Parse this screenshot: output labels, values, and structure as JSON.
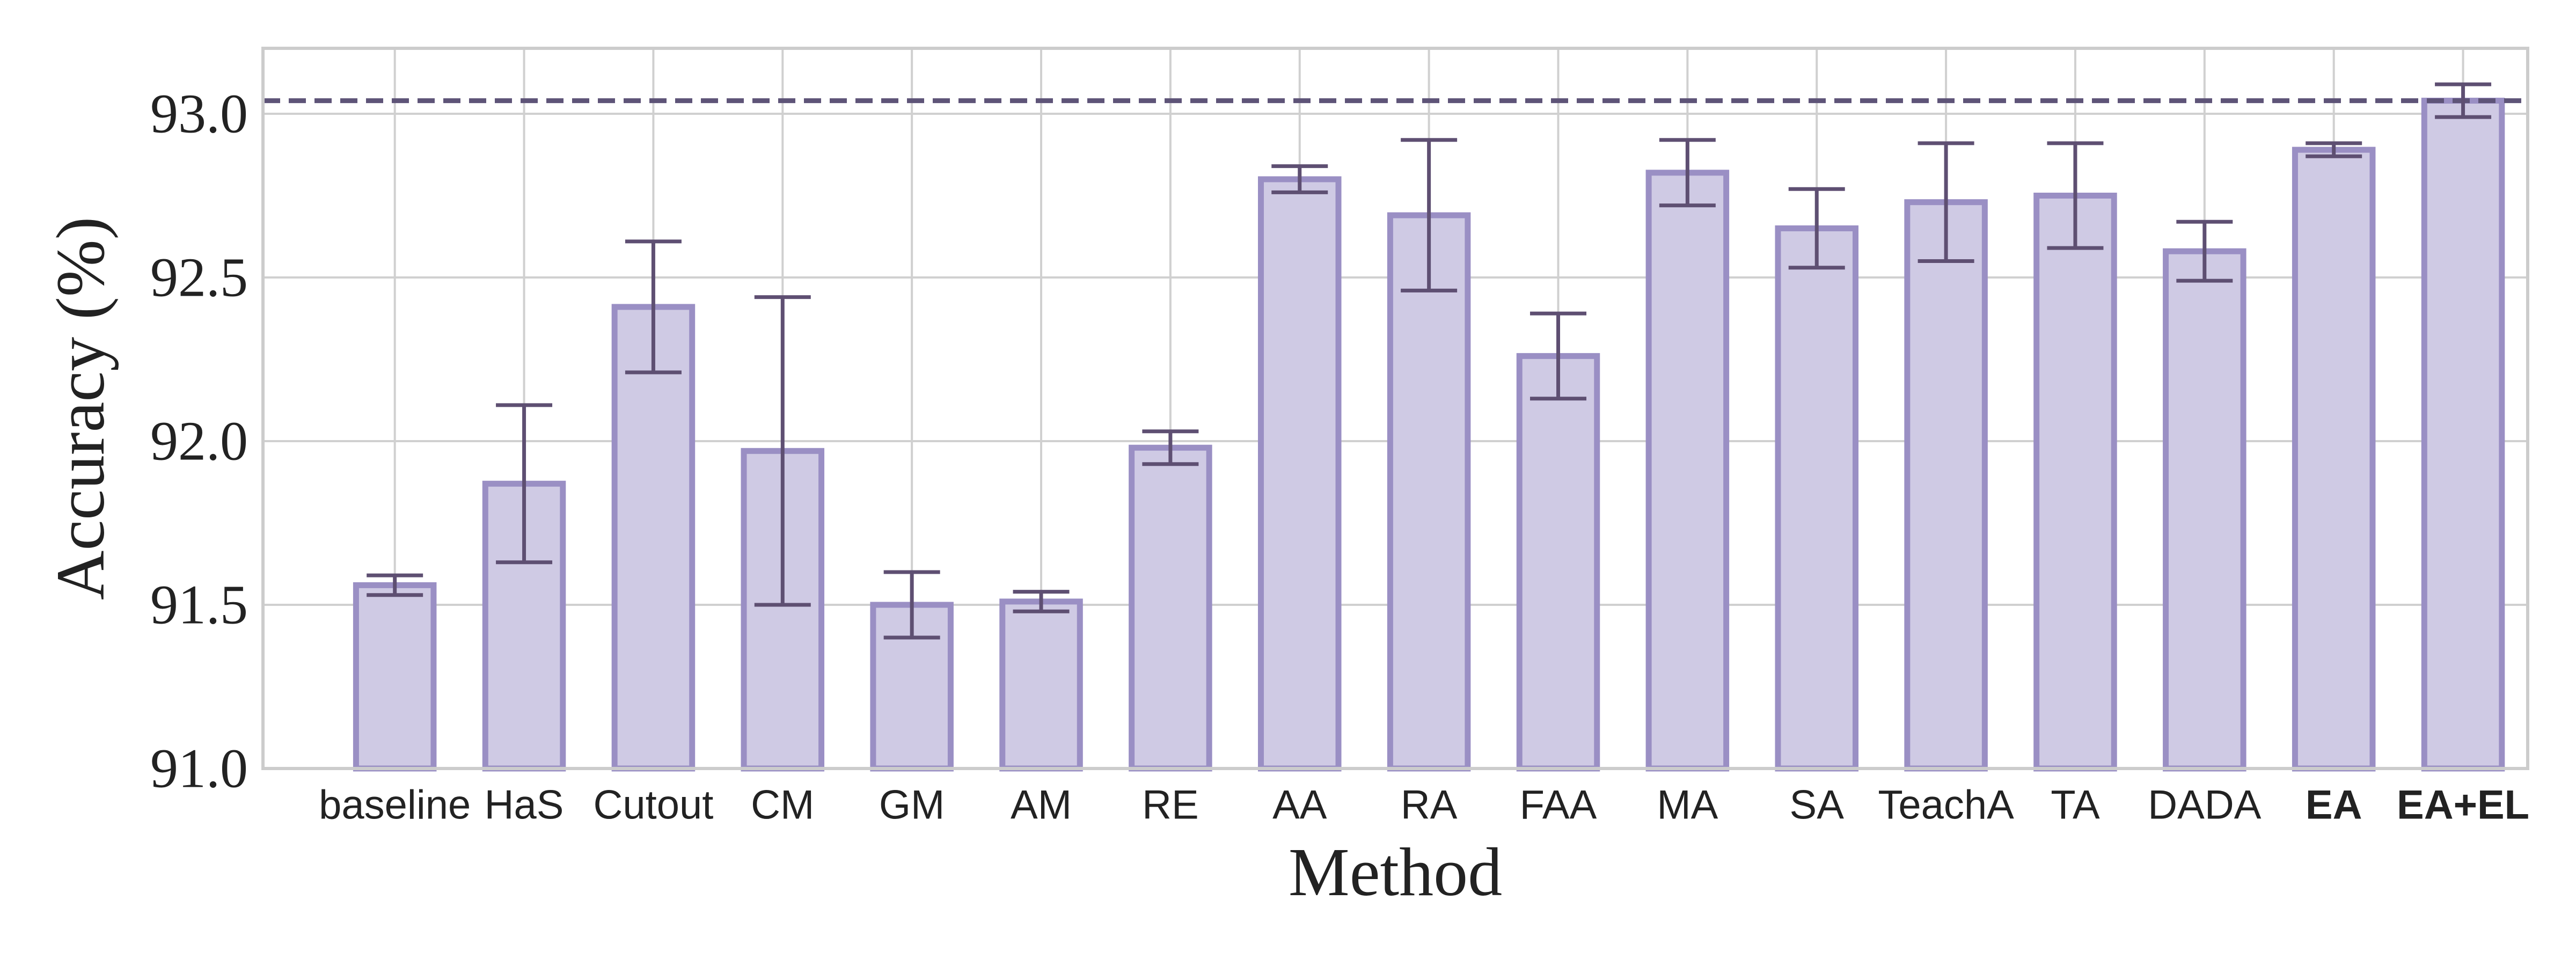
{
  "chart_data": {
    "type": "bar",
    "title": "",
    "xlabel": "Method",
    "ylabel": "Accuracy (%)",
    "categories": [
      "baseline",
      "HaS",
      "Cutout",
      "CM",
      "GM",
      "AM",
      "RE",
      "AA",
      "RA",
      "FAA",
      "MA",
      "SA",
      "TeachA",
      "TA",
      "DADA",
      "EA",
      "EA+EL"
    ],
    "bold_categories": [
      "EA",
      "EA+EL"
    ],
    "values": [
      91.56,
      91.87,
      92.41,
      91.97,
      91.5,
      91.51,
      91.98,
      92.8,
      92.69,
      92.26,
      92.82,
      92.65,
      92.73,
      92.75,
      92.58,
      92.89,
      93.04
    ],
    "error_lower": [
      91.53,
      91.63,
      92.21,
      91.5,
      91.4,
      91.48,
      91.93,
      92.76,
      92.46,
      92.13,
      92.72,
      92.53,
      92.55,
      92.59,
      92.49,
      92.87,
      92.99
    ],
    "error_upper": [
      91.59,
      92.11,
      92.61,
      92.44,
      91.6,
      91.54,
      92.03,
      92.84,
      92.92,
      92.39,
      92.92,
      92.77,
      92.91,
      92.91,
      92.67,
      92.91,
      93.09
    ],
    "reference_line": 93.04,
    "ylim": [
      91.0,
      93.2
    ],
    "yticks": [
      "91.0",
      "91.5",
      "92.0",
      "92.5",
      "93.0"
    ],
    "grid": true,
    "colors": {
      "bar_fill": "#cfcae4",
      "bar_edge": "#9a8fc4",
      "error_bar": "#5e4f72",
      "reference_line": "#5e5478",
      "grid": "#d0d0d0",
      "axes_frame": "#cccccc",
      "text": "#222222"
    }
  }
}
